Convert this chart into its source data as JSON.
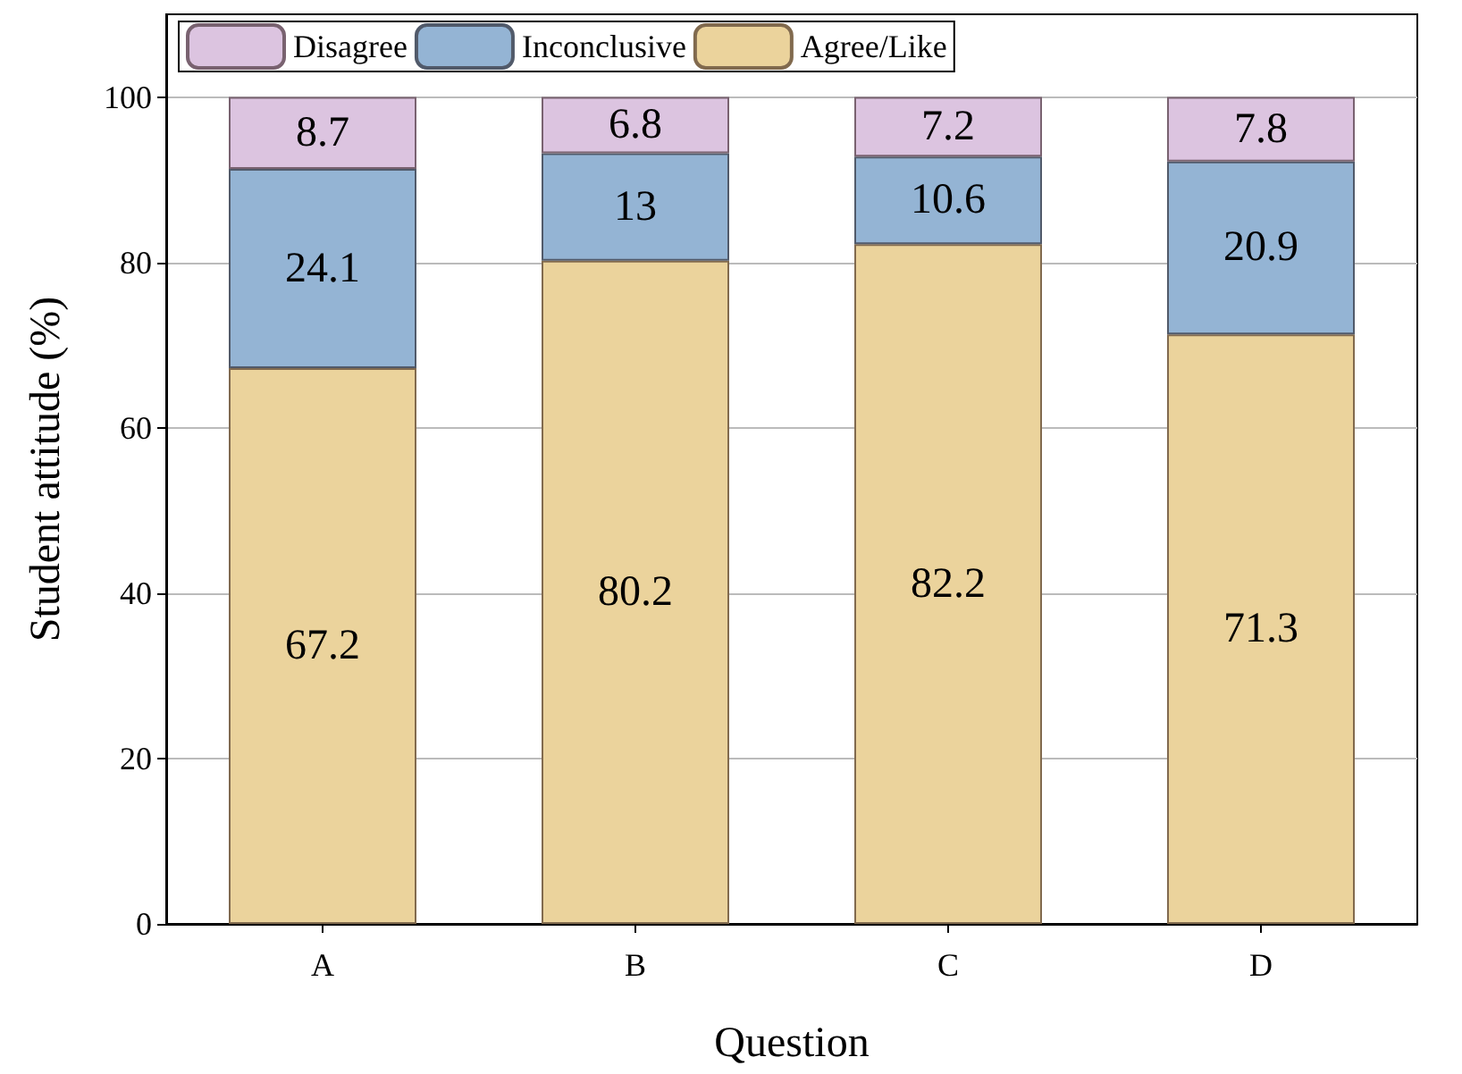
{
  "chart_data": {
    "type": "bar",
    "stacked": true,
    "xlabel": "Question",
    "ylabel": "Student attitude (%)",
    "categories": [
      "A",
      "B",
      "C",
      "D"
    ],
    "series": [
      {
        "name": "Agree/Like",
        "color": "#ebd39c",
        "values": [
          67.2,
          80.2,
          82.2,
          71.3
        ]
      },
      {
        "name": "Inconclusive",
        "color": "#94b4d4",
        "values": [
          24.1,
          13,
          10.6,
          20.9
        ]
      },
      {
        "name": "Disagree",
        "color": "#dcc4e0",
        "values": [
          8.7,
          6.8,
          7.2,
          7.8
        ]
      }
    ],
    "ylim": [
      0,
      110
    ],
    "yticks": [
      0,
      20,
      40,
      60,
      80,
      100
    ],
    "grid": "y",
    "legend": "top",
    "data_labels": true
  }
}
